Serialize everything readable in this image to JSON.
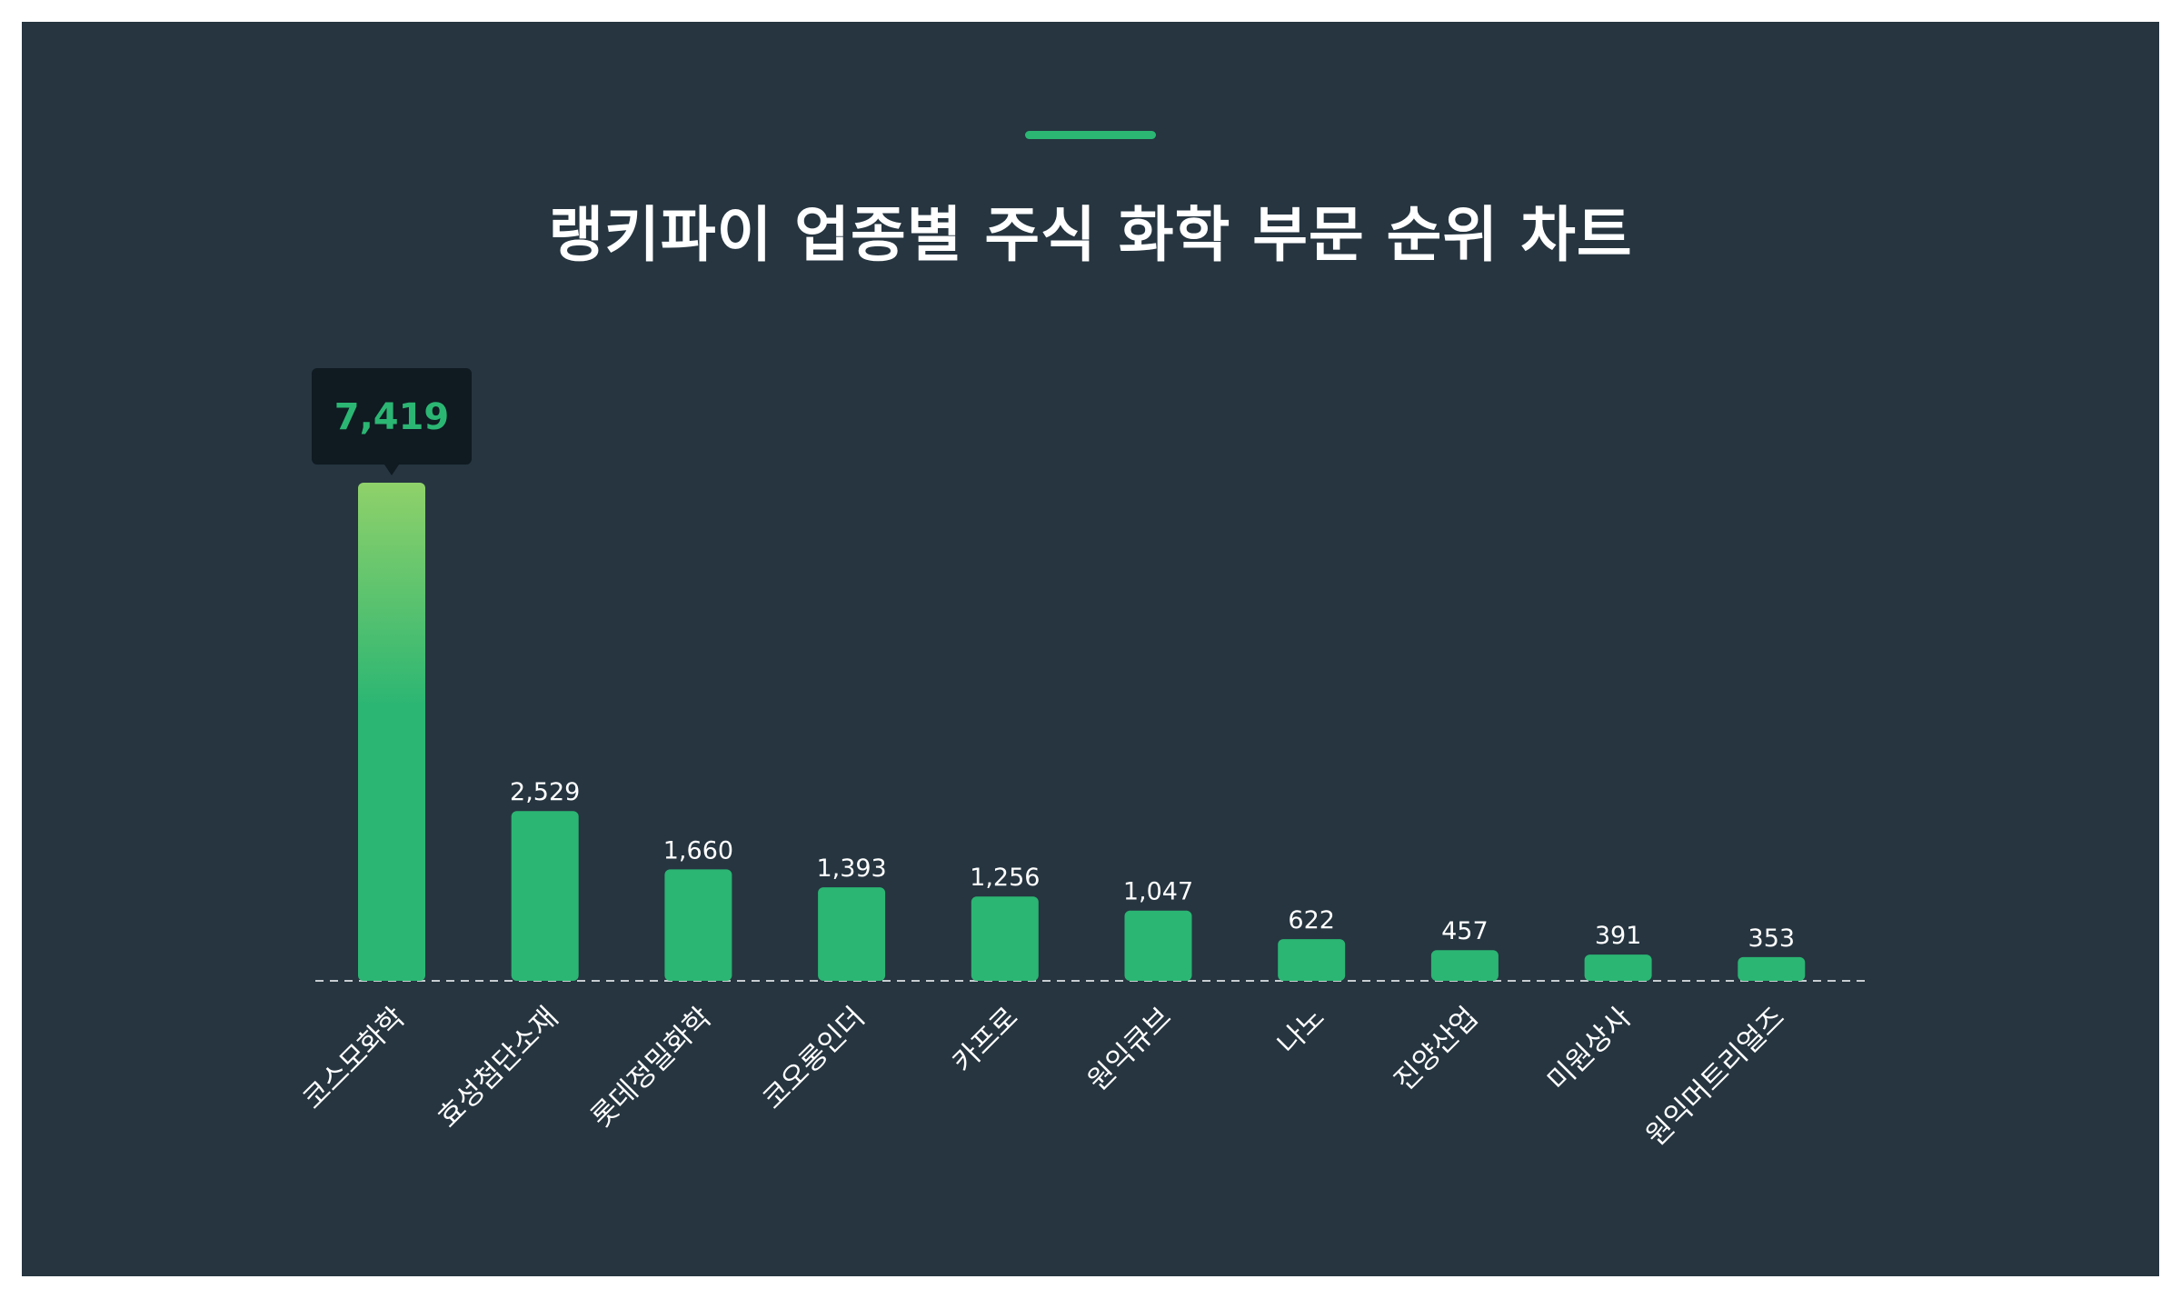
{
  "header": {
    "title": "랭키파이 업종별 주식 화학 부문 순위 차트"
  },
  "colors": {
    "background": "#263540",
    "bar": "#2bb673",
    "bar_highlight_top": "#8fd16a",
    "tooltip_bg": "#0f1a21",
    "tooltip_text": "#2bb673",
    "baseline": "#c8cdd1",
    "text": "#ffffff"
  },
  "chart_data": {
    "type": "bar",
    "title": "랭키파이 업종별 주식 화학 부문 순위 차트",
    "categories": [
      "코스모화학",
      "효성첨단소재",
      "롯데정밀화학",
      "코오롱인더",
      "카프로",
      "원익큐브",
      "나노",
      "진양산업",
      "미원상사",
      "원익머트리얼즈"
    ],
    "values": [
      7419,
      2529,
      1660,
      1393,
      1256,
      1047,
      622,
      457,
      391,
      353
    ],
    "value_labels": [
      "7,419",
      "2,529",
      "1,660",
      "1,393",
      "1,256",
      "1,047",
      "622",
      "457",
      "391",
      "353"
    ],
    "highlight_index": 0,
    "ylim": [
      0,
      7419
    ],
    "grid": false,
    "legend": "none",
    "baseline": "dashed"
  }
}
